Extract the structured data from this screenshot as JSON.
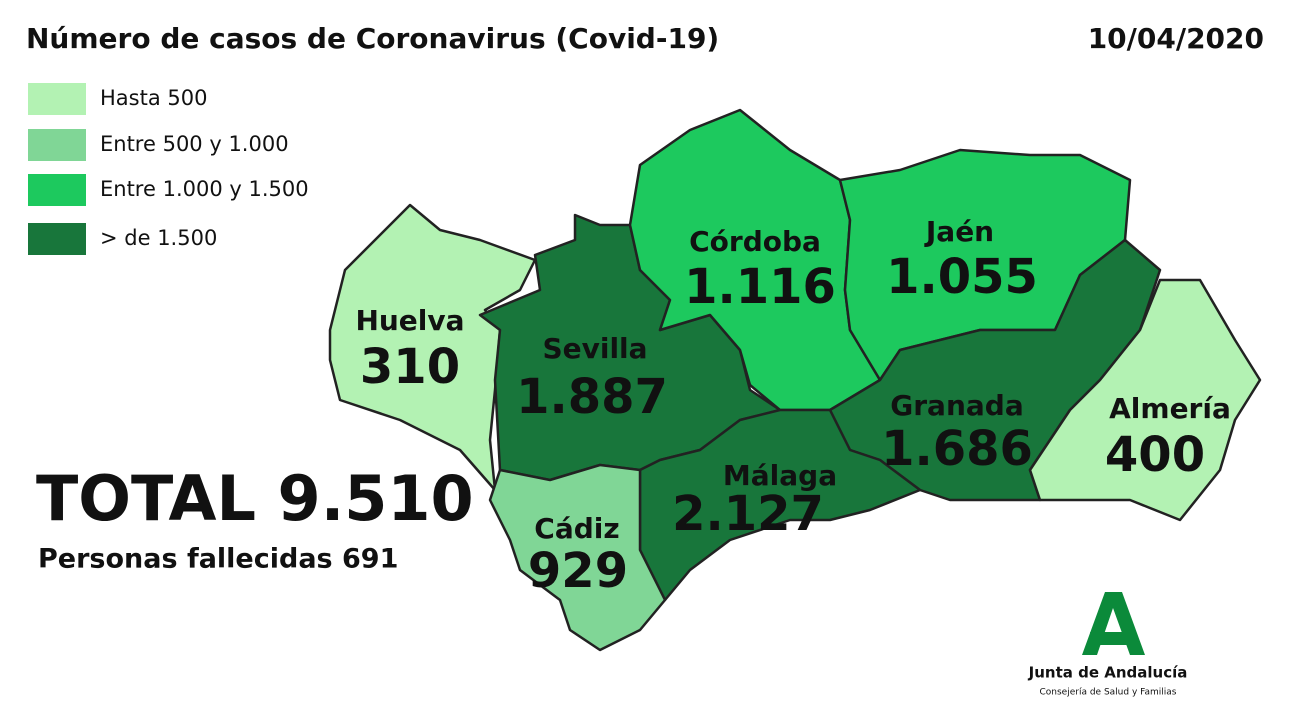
{
  "header": {
    "title": "Número de casos de Coronavirus (Covid-19)",
    "date": "10/04/2020"
  },
  "legend": [
    {
      "label": "Hasta 500",
      "color": "#b3f2b3"
    },
    {
      "label": "Entre 500 y 1.000",
      "color": "#80d696"
    },
    {
      "label": "Entre 1.000 y 1.500",
      "color": "#1dc95e"
    },
    {
      "label": "> de 1.500",
      "color": "#18763b"
    }
  ],
  "provinces": [
    {
      "name": "Huelva",
      "value": "310",
      "color": "#b3f2b3"
    },
    {
      "name": "Sevilla",
      "value": "1.887",
      "color": "#18763b"
    },
    {
      "name": "Córdoba",
      "value": "1.116",
      "color": "#1dc95e"
    },
    {
      "name": "Jaén",
      "value": "1.055",
      "color": "#1dc95e"
    },
    {
      "name": "Granada",
      "value": "1.686",
      "color": "#18763b"
    },
    {
      "name": "Almería",
      "value": "400",
      "color": "#b3f2b3"
    },
    {
      "name": "Málaga",
      "value": "2.127",
      "color": "#18763b"
    },
    {
      "name": "Cádiz",
      "value": "929",
      "color": "#80d696"
    }
  ],
  "summary": {
    "total": "TOTAL 9.510",
    "deaths": "Personas fallecidas 691"
  },
  "logo": {
    "name": "Junta de Andalucía",
    "subtitle": "Consejería de Salud y Familias"
  }
}
